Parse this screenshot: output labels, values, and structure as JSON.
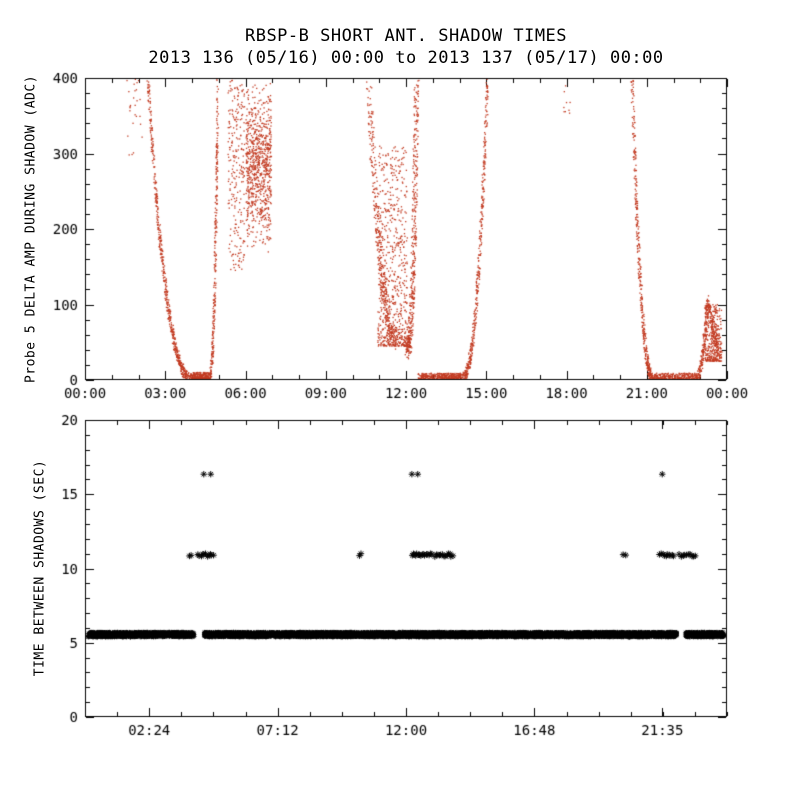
{
  "figure": {
    "title": "RBSP-B SHORT ANT. SHADOW TIMES",
    "subtitle": "2013 136 (05/16) 00:00 to 2013 137 (05/17) 00:00",
    "background": "#ffffff",
    "axis_color": "#000000"
  },
  "chart_data": [
    {
      "type": "scatter",
      "panel": "top",
      "ylabel": "Probe 5 DELTA AMP DURING SHADOW (ADC)",
      "marker": "dot",
      "marker_color": "#c23b22",
      "xlim_hours": [
        0,
        24
      ],
      "ylim": [
        0,
        400
      ],
      "yticks": [
        0,
        100,
        200,
        300,
        400
      ],
      "ytick_minor": 20,
      "xtick_minor_hours": 1,
      "xticks": [
        {
          "hour": 0,
          "label": "00:00"
        },
        {
          "hour": 3,
          "label": "03:00"
        },
        {
          "hour": 6,
          "label": "06:00"
        },
        {
          "hour": 9,
          "label": "09:00"
        },
        {
          "hour": 12,
          "label": "12:00"
        },
        {
          "hour": 15,
          "label": "15:00"
        },
        {
          "hour": 18,
          "label": "18:00"
        },
        {
          "hour": 21,
          "label": "21:00"
        },
        {
          "hour": 24,
          "label": "00:00"
        }
      ],
      "features": [
        {
          "kind": "cloud",
          "t0": 1.55,
          "t1": 2.15,
          "v0": 295,
          "v1": 400,
          "n": 26,
          "bias": "none"
        },
        {
          "kind": "branch",
          "t_top": 2.35,
          "t_bot": 4.15,
          "v_top": 400,
          "v_bot": 0,
          "power": 2.6,
          "dens": 2.4,
          "n": 650,
          "jt": 0.05,
          "jv": 7
        },
        {
          "kind": "flat",
          "t0": 4.05,
          "t1": 4.65,
          "vmax": 10,
          "n": 320
        },
        {
          "kind": "branch",
          "t_top": 4.97,
          "t_bot": 4.6,
          "v_top": 400,
          "v_bot": 0,
          "power": 3.0,
          "dens": 1.6,
          "n": 300,
          "jt": 0.04,
          "jv": 7
        },
        {
          "kind": "cloud",
          "t0": 5.35,
          "t1": 5.97,
          "v0": 145,
          "v1": 400,
          "n": 240,
          "bias": "none"
        },
        {
          "kind": "cloud",
          "t0": 6.02,
          "t1": 6.97,
          "v0": 165,
          "v1": 400,
          "n": 820,
          "bias": "mid"
        },
        {
          "kind": "branch",
          "t_top": 10.6,
          "t_bot": 11.6,
          "v_top": 400,
          "v_bot": 55,
          "power": 2.0,
          "dens": 1.8,
          "n": 380,
          "jt": 0.1,
          "jv": 16
        },
        {
          "kind": "cloud",
          "t0": 10.95,
          "t1": 12.05,
          "v0": 45,
          "v1": 310,
          "n": 640,
          "bias": "low"
        },
        {
          "kind": "branch",
          "t_top": 12.4,
          "t_bot": 12.02,
          "v_top": 400,
          "v_bot": 40,
          "power": 2.8,
          "dens": 1.7,
          "n": 430,
          "jt": 0.09,
          "jv": 12
        },
        {
          "kind": "flat",
          "t0": 12.45,
          "t1": 14.05,
          "vmax": 9,
          "n": 500
        },
        {
          "kind": "branch",
          "t_top": 15.05,
          "t_bot": 14.02,
          "v_top": 400,
          "v_bot": 0,
          "power": 2.6,
          "dens": 2.0,
          "n": 430,
          "jt": 0.05,
          "jv": 7
        },
        {
          "kind": "cloud",
          "t0": 17.88,
          "t1": 18.15,
          "v0": 350,
          "v1": 390,
          "n": 9,
          "bias": "none"
        },
        {
          "kind": "branch",
          "t_top": 20.45,
          "t_bot": 21.28,
          "v_top": 400,
          "v_bot": 0,
          "power": 2.4,
          "dens": 2.2,
          "n": 430,
          "jt": 0.05,
          "jv": 7
        },
        {
          "kind": "flat",
          "t0": 21.22,
          "t1": 22.9,
          "vmax": 9,
          "n": 430
        },
        {
          "kind": "branch",
          "t_top": 23.28,
          "t_bot": 22.9,
          "v_top": 105,
          "v_bot": 2,
          "power": 1.7,
          "dens": 1.2,
          "n": 190,
          "jt": 0.05,
          "jv": 8
        },
        {
          "kind": "cloud",
          "t0": 23.18,
          "t1": 23.8,
          "v0": 25,
          "v1": 100,
          "n": 330,
          "bias": "low"
        },
        {
          "kind": "branch",
          "t_top": 23.3,
          "t_bot": 23.78,
          "v_top": 100,
          "v_bot": 35,
          "power": 1.5,
          "dens": 1.2,
          "n": 140,
          "jt": 0.06,
          "jv": 10
        }
      ]
    },
    {
      "type": "scatter",
      "panel": "bottom",
      "ylabel": "TIME BETWEEN SHADOWS (SEC)",
      "marker": "asterisk",
      "marker_color": "#000000",
      "xlim_hours": [
        0,
        24
      ],
      "ylim": [
        0,
        20
      ],
      "yticks": [
        0,
        5,
        10,
        15,
        20
      ],
      "ytick_minor": 1,
      "xtick_minor_hours": 1.2,
      "xticks": [
        {
          "hour": 2.4,
          "label": "02:24"
        },
        {
          "hour": 7.2,
          "label": "07:12"
        },
        {
          "hour": 12.0,
          "label": "12:00"
        },
        {
          "hour": 16.8,
          "label": "16:48"
        },
        {
          "hour": 21.583,
          "label": "21:35"
        }
      ],
      "band": {
        "value": 5.55,
        "halfwidth": 0.16,
        "per_hour": 290,
        "segments": [
          [
            0.12,
            4.08
          ],
          [
            4.45,
            22.12
          ],
          [
            22.45,
            23.88
          ]
        ]
      },
      "mid_clusters": {
        "value": 10.9,
        "jitter": 0.1,
        "groups": [
          {
            "t0": 3.9,
            "t1": 3.97,
            "n": 2
          },
          {
            "t0": 4.22,
            "t1": 4.8,
            "n": 11
          },
          {
            "t0": 10.27,
            "t1": 10.33,
            "n": 2
          },
          {
            "t0": 12.22,
            "t1": 12.95,
            "n": 16
          },
          {
            "t0": 13.08,
            "t1": 13.75,
            "n": 13
          },
          {
            "t0": 20.13,
            "t1": 20.2,
            "n": 2
          },
          {
            "t0": 21.48,
            "t1": 22.0,
            "n": 10
          },
          {
            "t0": 22.22,
            "t1": 22.82,
            "n": 10
          }
        ]
      },
      "top_points": {
        "value": 16.35,
        "times": [
          4.44,
          4.7,
          12.22,
          12.44,
          21.58
        ]
      }
    }
  ]
}
